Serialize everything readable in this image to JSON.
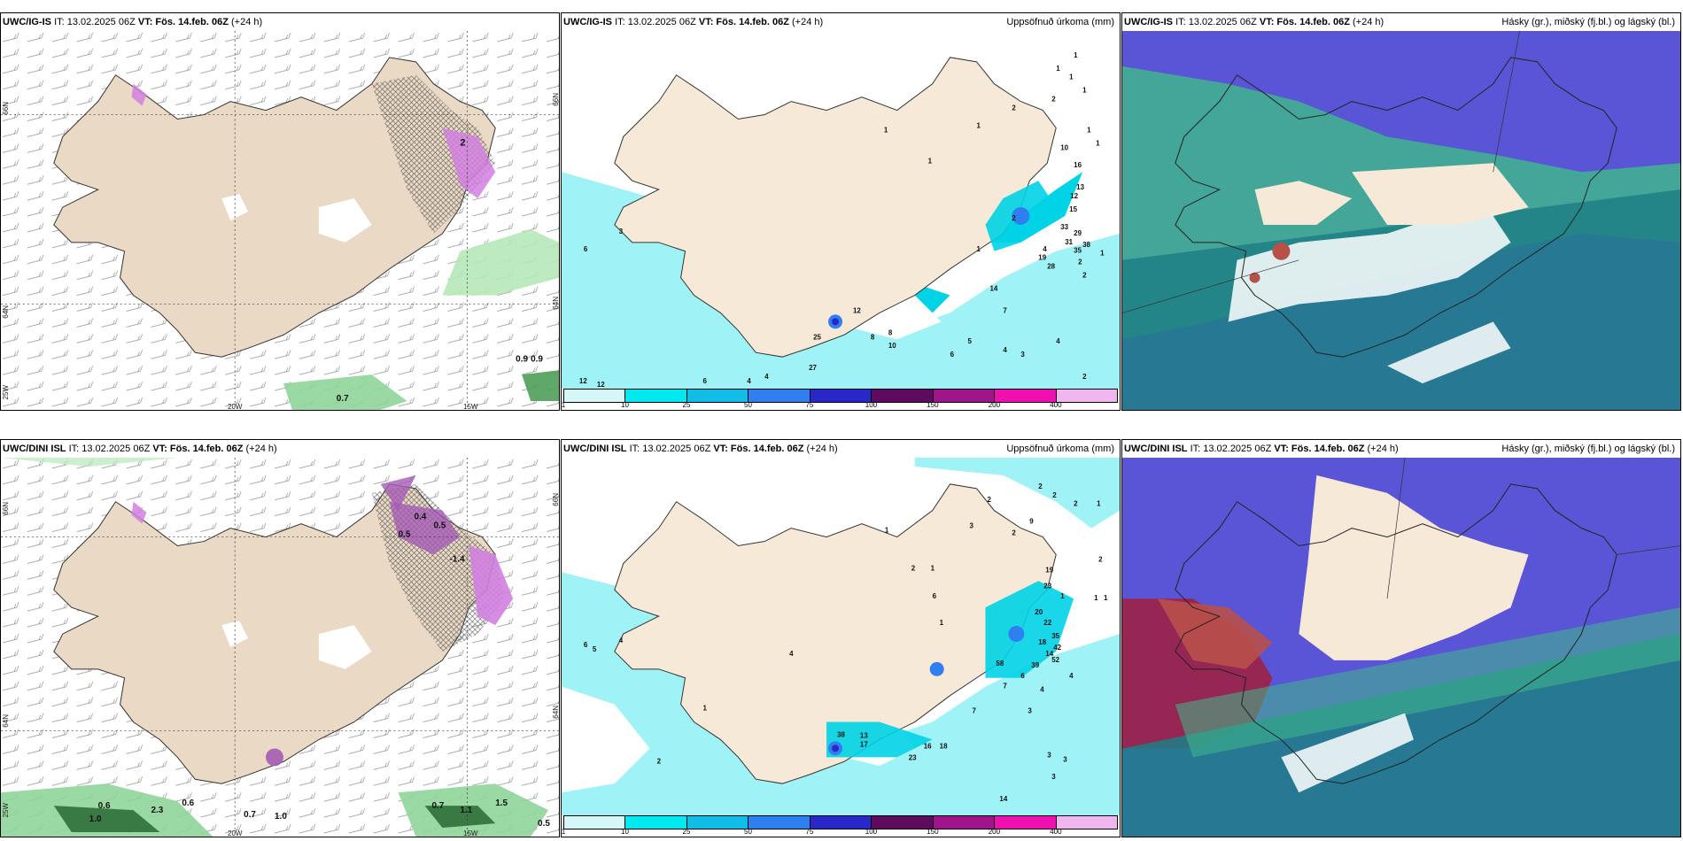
{
  "rows": [
    {
      "panels": [
        {
          "model": "UWC/IG-IS",
          "it_label": "IT: 13.02.2025 06Z",
          "vt_label": "VT: Fös. 14.feb. 06Z",
          "lead": "(+24 h)",
          "right_title": "",
          "coords": {
            "lat1": "66N",
            "lat2": "64N",
            "lat3": "25W",
            "lon1": "20W",
            "lon2": "15W",
            "latR1": "66N",
            "latR2": "64N"
          },
          "values": [
            "0.7",
            "0.9",
            "0.9",
            "2"
          ]
        },
        {
          "model": "UWC/IG-IS",
          "it_label": "IT: 13.02.2025 06Z",
          "vt_label": "VT: Fös. 14.feb. 06Z",
          "lead": "(+24 h)",
          "right_title": "Uppsöfnuð úrkoma (mm)",
          "values": [
            "12",
            "12",
            "12",
            "6",
            "4",
            "4",
            "27",
            "8",
            "8",
            "10",
            "6",
            "5",
            "4",
            "3",
            "4",
            "2",
            "7",
            "14",
            "4",
            "2",
            "2",
            "1",
            "1",
            "1",
            "1",
            "1",
            "1",
            "2",
            "2",
            "1",
            "1",
            "10",
            "16",
            "13",
            "12",
            "15",
            "33",
            "29",
            "31",
            "38",
            "35",
            "28",
            "2",
            "1",
            "1",
            "6",
            "3",
            "25",
            "19",
            "1"
          ]
        },
        {
          "model": "UWC/IG-IS",
          "it_label": "IT: 13.02.2025 06Z",
          "vt_label": "VT: Fös. 14.feb. 06Z",
          "lead": "(+24 h)",
          "right_title": "Hásky (gr.), miðský (fj.bl.) og lágský (bl.)"
        }
      ]
    },
    {
      "panels": [
        {
          "model": "UWC/DINI ISL",
          "it_label": "IT: 13.02.2025 06Z",
          "vt_label": "VT: Fös. 14.feb. 06Z",
          "lead": "(+24 h)",
          "right_title": "",
          "coords": {
            "lat1": "66N",
            "lat2": "64N",
            "lat3": "25W",
            "lon1": "20W",
            "lon2": "15W",
            "latR1": "66N",
            "latR2": "64N"
          },
          "values": [
            "0.6",
            "1.0",
            "2.3",
            "0.6",
            "0.7",
            "1.0",
            "0.7",
            "1.1",
            "1.5",
            "0.5",
            "-1.4",
            "0.4",
            "0.5",
            "0.5"
          ]
        },
        {
          "model": "UWC/DINI ISL",
          "it_label": "IT: 13.02.2025 06Z",
          "vt_label": "VT: Fös. 14.feb. 06Z",
          "lead": "(+24 h)",
          "right_title": "Uppsöfnuð úrkoma (mm)",
          "values": [
            "6",
            "5",
            "4",
            "4",
            "1",
            "2",
            "38",
            "13",
            "17",
            "23",
            "16",
            "18",
            "14",
            "3",
            "3",
            "3",
            "7",
            "3",
            "6",
            "7",
            "4",
            "4",
            "39",
            "58",
            "52",
            "42",
            "35",
            "20",
            "22",
            "18",
            "14",
            "23",
            "19",
            "1",
            "1",
            "1",
            "2",
            "2",
            "9",
            "2",
            "2",
            "1",
            "2",
            "3",
            "2",
            "6",
            "1",
            "2",
            "1",
            "1"
          ]
        },
        {
          "model": "UWC/DINI ISL",
          "it_label": "IT: 13.02.2025 06Z",
          "vt_label": "VT: Fös. 14.feb. 06Z",
          "lead": "(+24 h)",
          "right_title": "Hásky (gr.), miðský (fj.bl.) og lágský (bl.)"
        }
      ]
    }
  ],
  "colorbar": {
    "ticks": [
      "1",
      "10",
      "25",
      "50",
      "75",
      "100",
      "150",
      "200",
      "400"
    ],
    "colors": [
      "#d6f7f7",
      "#00e8f0",
      "#11bde6",
      "#2f7ff0",
      "#2828c8",
      "#5e0a5e",
      "#a0148c",
      "#f010b0",
      "#f0b6f0"
    ]
  },
  "colors": {
    "land": "#f6e9d8",
    "land_shade": "#e9d4c0",
    "precip_light": "#9ff2f5",
    "precip_mid": "#00d3e6",
    "low_cloud": "#1f7f86",
    "mid_cloud": "#5a55d6",
    "high_cloud": "#3fb98a",
    "snow_green": "#b7e8b8"
  }
}
